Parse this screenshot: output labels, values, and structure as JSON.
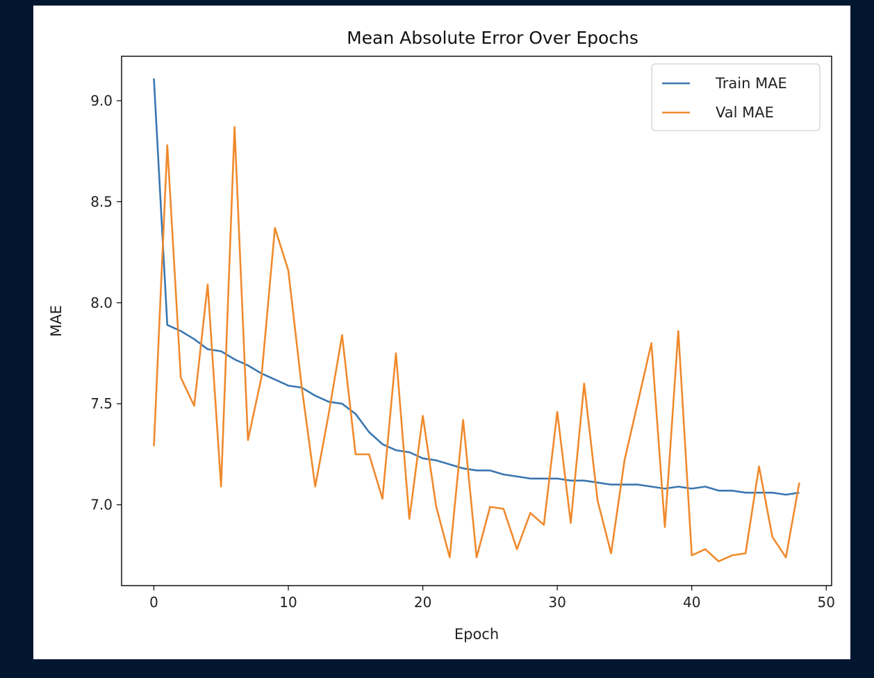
{
  "chart_data": {
    "type": "line",
    "title": "Mean Absolute Error Over Epochs",
    "xlabel": "Epoch",
    "ylabel": "MAE",
    "xlim": [
      -2.4,
      50.4
    ],
    "ylim": [
      6.6,
      9.22
    ],
    "xticks": [
      0,
      10,
      20,
      30,
      40,
      50
    ],
    "yticks": [
      7.0,
      7.5,
      8.0,
      8.5,
      9.0
    ],
    "xtick_labels": [
      "0",
      "10",
      "20",
      "30",
      "40",
      "50"
    ],
    "ytick_labels": [
      "7.0",
      "7.5",
      "8.0",
      "8.5",
      "9.0"
    ],
    "grid": false,
    "legend_position": "top-right",
    "x": [
      0,
      1,
      2,
      3,
      4,
      5,
      6,
      7,
      8,
      9,
      10,
      11,
      12,
      13,
      14,
      15,
      16,
      17,
      18,
      19,
      20,
      21,
      22,
      23,
      24,
      25,
      26,
      27,
      28,
      29,
      30,
      31,
      32,
      33,
      34,
      35,
      36,
      37,
      38,
      39,
      40,
      41,
      42,
      43,
      44,
      45,
      46,
      47,
      48
    ],
    "series": [
      {
        "name": "Train MAE",
        "color": "#3a76b0",
        "values": [
          9.11,
          7.89,
          7.86,
          7.82,
          7.77,
          7.76,
          7.72,
          7.69,
          7.65,
          7.62,
          7.59,
          7.58,
          7.54,
          7.51,
          7.5,
          7.45,
          7.36,
          7.3,
          7.27,
          7.26,
          7.23,
          7.22,
          7.2,
          7.18,
          7.17,
          7.17,
          7.15,
          7.14,
          7.13,
          7.13,
          7.13,
          7.12,
          7.12,
          7.11,
          7.1,
          7.1,
          7.1,
          7.09,
          7.08,
          7.09,
          7.08,
          7.09,
          7.07,
          7.07,
          7.06,
          7.06,
          7.06,
          7.05,
          7.06
        ]
      },
      {
        "name": "Val MAE",
        "color": "#f0892c",
        "values": [
          7.29,
          8.78,
          7.63,
          7.49,
          8.09,
          7.09,
          8.87,
          7.32,
          7.63,
          8.37,
          8.16,
          7.58,
          7.09,
          7.45,
          7.84,
          7.25,
          7.25,
          7.03,
          7.75,
          6.93,
          7.44,
          6.99,
          6.74,
          7.42,
          6.74,
          6.99,
          6.98,
          6.78,
          6.96,
          6.9,
          7.46,
          6.91,
          7.6,
          7.02,
          6.76,
          7.22,
          7.51,
          7.8,
          6.89,
          7.86,
          6.75,
          6.78,
          6.72,
          6.75,
          6.76,
          7.19,
          6.84,
          6.74,
          7.11
        ]
      }
    ]
  }
}
